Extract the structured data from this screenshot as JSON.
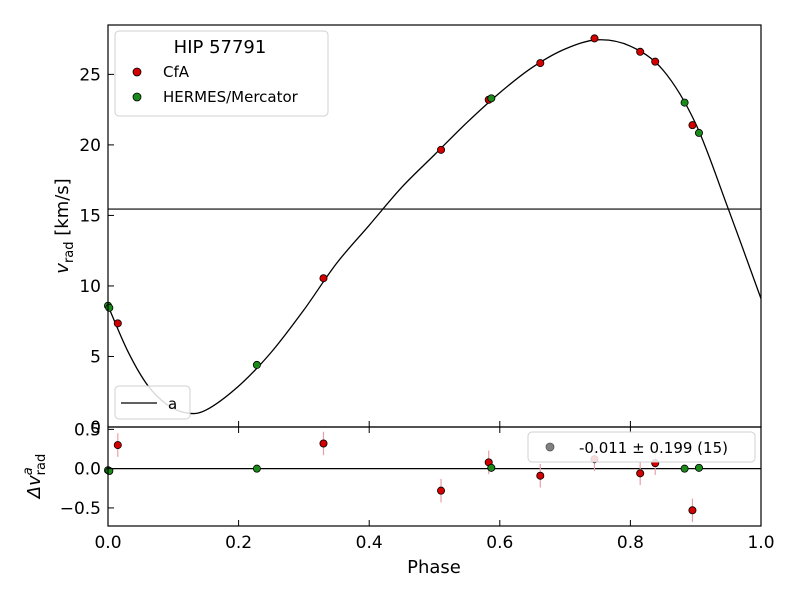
{
  "chart_data": [
    {
      "type": "scatter",
      "panel": "top",
      "xlabel": "Phase",
      "ylabel": {
        "main": "v",
        "sub": "rad",
        "unit": " [km/s]"
      },
      "xlim": [
        0,
        1
      ],
      "ylim": [
        0,
        28.5
      ],
      "xticks": [
        0.0,
        0.2,
        0.4,
        0.6,
        0.8,
        1.0
      ],
      "xtick_labels": [
        "0.0",
        "0.2",
        "0.4",
        "0.6",
        "0.8",
        "1.0"
      ],
      "yticks": [
        0,
        5,
        10,
        15,
        20,
        25
      ],
      "ytick_labels": [
        "0",
        "5",
        "10",
        "15",
        "20",
        "25"
      ],
      "legend_title": "HIP 57791",
      "legend_placement": "upper-left",
      "reference_line": {
        "y": 15.45
      },
      "series": [
        {
          "name": "CfA",
          "color": "#d40000",
          "points": [
            {
              "x": 0.015,
              "y": 7.35
            },
            {
              "x": 0.33,
              "y": 10.55
            },
            {
              "x": 0.51,
              "y": 19.65
            },
            {
              "x": 0.583,
              "y": 23.2
            },
            {
              "x": 0.662,
              "y": 25.8
            },
            {
              "x": 0.745,
              "y": 27.55
            },
            {
              "x": 0.815,
              "y": 26.6
            },
            {
              "x": 0.838,
              "y": 25.9
            },
            {
              "x": 0.895,
              "y": 21.4
            }
          ]
        },
        {
          "name": "HERMES/Mercator",
          "color": "#1a8a1a",
          "points": [
            {
              "x": 0.0,
              "y": 8.6
            },
            {
              "x": 0.002,
              "y": 8.45
            },
            {
              "x": 0.228,
              "y": 4.4
            },
            {
              "x": 0.587,
              "y": 23.3
            },
            {
              "x": 0.883,
              "y": 23.0
            },
            {
              "x": 0.905,
              "y": 20.85
            }
          ]
        }
      ],
      "model_curve": {
        "name": "a",
        "points": [
          [
            0.0,
            8.6
          ],
          [
            0.03,
            5.4
          ],
          [
            0.06,
            3.0
          ],
          [
            0.09,
            1.6
          ],
          [
            0.12,
            1.0
          ],
          [
            0.15,
            1.2
          ],
          [
            0.2,
            2.9
          ],
          [
            0.25,
            5.3
          ],
          [
            0.3,
            8.3
          ],
          [
            0.35,
            11.6
          ],
          [
            0.4,
            14.3
          ],
          [
            0.45,
            17.0
          ],
          [
            0.5,
            19.3
          ],
          [
            0.55,
            21.6
          ],
          [
            0.6,
            23.7
          ],
          [
            0.65,
            25.5
          ],
          [
            0.7,
            26.8
          ],
          [
            0.75,
            27.45
          ],
          [
            0.8,
            27.0
          ],
          [
            0.85,
            25.3
          ],
          [
            0.9,
            21.5
          ],
          [
            0.95,
            15.45
          ],
          [
            1.0,
            9.1
          ]
        ]
      }
    },
    {
      "type": "scatter",
      "panel": "bottom",
      "xlabel": "Phase",
      "ylabel": {
        "main": "Δv",
        "sup": "a",
        "sub": "rad"
      },
      "xlim": [
        0,
        1
      ],
      "ylim": [
        -0.73,
        0.53
      ],
      "yticks": [
        -0.5,
        0.0,
        0.5
      ],
      "ytick_labels": [
        "−0.5",
        "0.0",
        "0.5"
      ],
      "zero_line": {
        "y": 0
      },
      "residual_legend": {
        "text": "-0.011 ± 0.199 (15)",
        "marker_color": "#808080"
      },
      "series": [
        {
          "name": "CfA",
          "color": "#d40000",
          "points": [
            {
              "x": 0.015,
              "y": 0.3,
              "err": 0.15
            },
            {
              "x": 0.33,
              "y": 0.32,
              "err": 0.15
            },
            {
              "x": 0.51,
              "y": -0.28,
              "err": 0.15
            },
            {
              "x": 0.583,
              "y": 0.08,
              "err": 0.15
            },
            {
              "x": 0.662,
              "y": -0.09,
              "err": 0.15
            },
            {
              "x": 0.745,
              "y": 0.12,
              "err": 0.15
            },
            {
              "x": 0.815,
              "y": -0.06,
              "err": 0.15
            },
            {
              "x": 0.838,
              "y": 0.07,
              "err": 0.15
            },
            {
              "x": 0.895,
              "y": -0.53,
              "err": 0.15
            }
          ]
        },
        {
          "name": "HERMES/Mercator",
          "color": "#1a8a1a",
          "points": [
            {
              "x": 0.0,
              "y": -0.02,
              "err": 0.0
            },
            {
              "x": 0.002,
              "y": -0.03,
              "err": 0.0
            },
            {
              "x": 0.228,
              "y": 0.0,
              "err": 0.0
            },
            {
              "x": 0.587,
              "y": 0.01,
              "err": 0.0
            },
            {
              "x": 0.883,
              "y": 0.0,
              "err": 0.0
            },
            {
              "x": 0.905,
              "y": 0.01,
              "err": 0.0
            }
          ]
        }
      ]
    }
  ]
}
